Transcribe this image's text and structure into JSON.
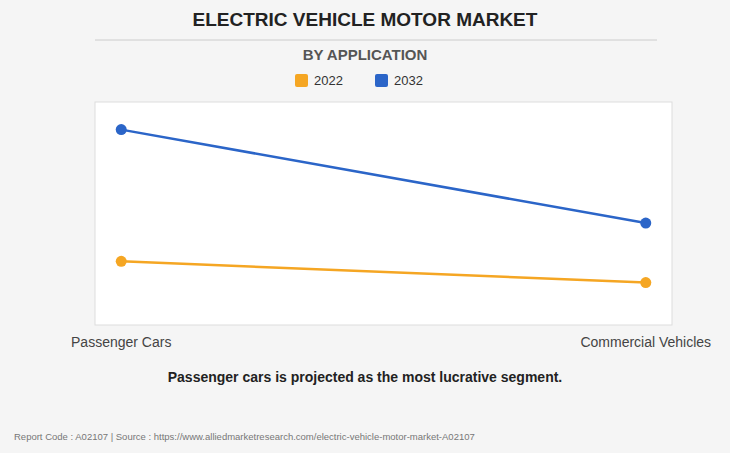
{
  "chart_data": {
    "type": "line",
    "title": "ELECTRIC VEHICLE MOTOR MARKET",
    "subtitle": "BY APPLICATION",
    "categories": [
      "Passenger Cars",
      "Commercial Vehicles"
    ],
    "series": [
      {
        "name": "2022",
        "color": "#F5A623",
        "values": [
          0.3,
          0.2
        ],
        "marker": "circle"
      },
      {
        "name": "2032",
        "color": "#2B65C8",
        "values": [
          0.92,
          0.48
        ],
        "marker": "circle"
      }
    ],
    "ylim": [
      0.0,
      1.05
    ],
    "grid": false,
    "tick_labels": "x",
    "annotations": [
      "Passenger cars is projected as the most lucrative segment.",
      "Report Code : A02107  |  Source : https://www.alliedmarketresearch.com/electric-vehicle-motor-market-A02107"
    ]
  }
}
